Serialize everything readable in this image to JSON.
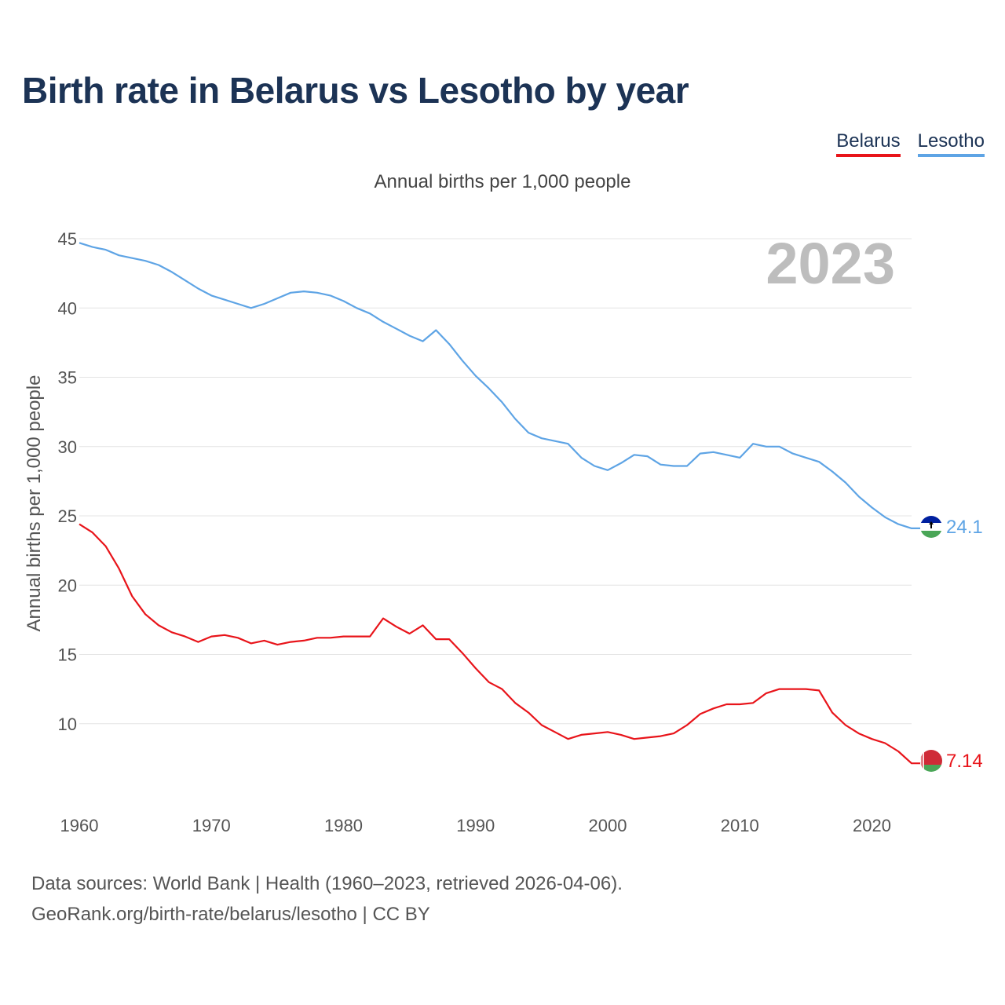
{
  "page_title": "Birth rate in Belarus vs Lesotho by year",
  "subtitle": "Annual births per 1,000 people",
  "legend": [
    {
      "name": "Belarus",
      "color": "#e8141a"
    },
    {
      "name": "Lesotho",
      "color": "#5ea4e5"
    }
  ],
  "year_display": "2023",
  "end_labels": {
    "belarus": "7.14",
    "lesotho": "24.1"
  },
  "footer": {
    "line1": "Data sources: World Bank | Health (1960–2023, retrieved 2026-04-06).",
    "line2": "GeoRank.org/birth-rate/belarus/lesotho | CC BY"
  },
  "chart_data": {
    "type": "line",
    "title": "Birth rate in Belarus vs Lesotho by year",
    "ylabel": "Annual births per 1,000 people",
    "xlabel": "",
    "xlim": [
      1960,
      2023
    ],
    "ylim": [
      5,
      45
    ],
    "x_ticks": [
      1960,
      1970,
      1980,
      1990,
      2000,
      2010,
      2020
    ],
    "y_ticks": [
      10,
      15,
      20,
      25,
      30,
      35,
      40,
      45
    ],
    "grid": true,
    "x": [
      1960,
      1961,
      1962,
      1963,
      1964,
      1965,
      1966,
      1967,
      1968,
      1969,
      1970,
      1971,
      1972,
      1973,
      1974,
      1975,
      1976,
      1977,
      1978,
      1979,
      1980,
      1981,
      1982,
      1983,
      1984,
      1985,
      1986,
      1987,
      1988,
      1989,
      1990,
      1991,
      1992,
      1993,
      1994,
      1995,
      1996,
      1997,
      1998,
      1999,
      2000,
      2001,
      2002,
      2003,
      2004,
      2005,
      2006,
      2007,
      2008,
      2009,
      2010,
      2011,
      2012,
      2013,
      2014,
      2015,
      2016,
      2017,
      2018,
      2019,
      2020,
      2021,
      2022,
      2023
    ],
    "series": [
      {
        "name": "Belarus",
        "color": "#e8141a",
        "values": [
          24.4,
          23.8,
          22.8,
          21.2,
          19.2,
          17.9,
          17.1,
          16.6,
          16.3,
          15.9,
          16.3,
          16.4,
          16.2,
          15.8,
          16.0,
          15.7,
          15.9,
          16.0,
          16.2,
          16.2,
          16.3,
          16.3,
          16.3,
          17.6,
          17.0,
          16.5,
          17.1,
          16.1,
          16.1,
          15.1,
          14.0,
          13.0,
          12.5,
          11.5,
          10.8,
          9.9,
          9.4,
          8.9,
          9.2,
          9.3,
          9.4,
          9.2,
          8.9,
          9.0,
          9.1,
          9.3,
          9.9,
          10.7,
          11.1,
          11.4,
          11.4,
          11.5,
          12.2,
          12.5,
          12.5,
          12.5,
          12.4,
          10.8,
          9.9,
          9.3,
          8.9,
          8.6,
          8.0,
          7.14
        ]
      },
      {
        "name": "Lesotho",
        "color": "#5ea4e5",
        "values": [
          44.7,
          44.4,
          44.2,
          43.8,
          43.6,
          43.4,
          43.1,
          42.6,
          42.0,
          41.4,
          40.9,
          40.6,
          40.3,
          40.0,
          40.3,
          40.7,
          41.1,
          41.2,
          41.1,
          40.9,
          40.5,
          40.0,
          39.6,
          39.0,
          38.5,
          38.0,
          37.6,
          38.4,
          37.4,
          36.2,
          35.1,
          34.2,
          33.2,
          32.0,
          31.0,
          30.6,
          30.4,
          30.2,
          29.2,
          28.6,
          28.3,
          28.8,
          29.4,
          29.3,
          28.7,
          28.6,
          28.6,
          29.5,
          29.6,
          29.4,
          29.2,
          30.2,
          30.0,
          30.0,
          29.5,
          29.2,
          28.9,
          28.2,
          27.4,
          26.4,
          25.6,
          24.9,
          24.4,
          24.1
        ]
      }
    ]
  }
}
